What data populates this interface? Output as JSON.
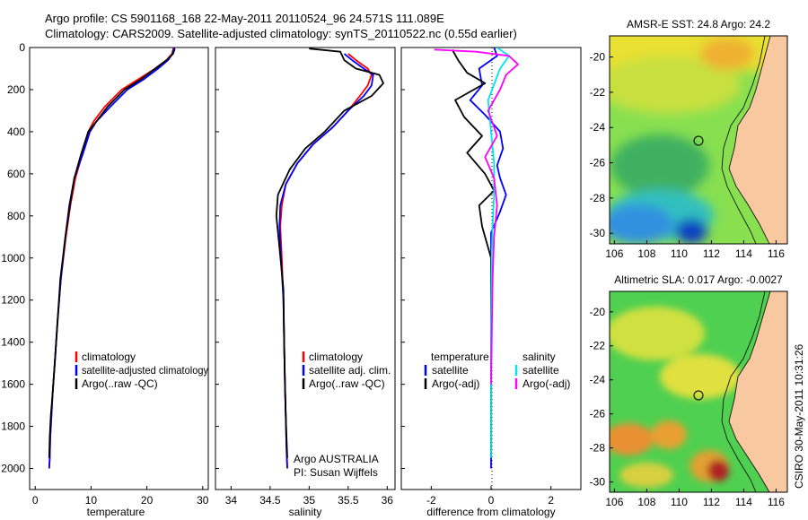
{
  "header": {
    "line1": "Argo profile: CS 5901168_168 22-May-2011 20110524_96 24.571S 111.089E",
    "line2": "Climatology: CARS2009. Satellite-adjusted climatology: synTS_20110522.nc (0.55d earlier)"
  },
  "side_stamp": "CSIRO 30-May-2011 10:31:26",
  "colors": {
    "climatology": "#ff0000",
    "satellite": "#0000ff",
    "argo": "#000000",
    "sal_satellite": "#00e5ee",
    "sal_argo": "#ff00ff",
    "land": "#f8c8a0",
    "coast": "#000000"
  },
  "chart_data": [
    {
      "type": "line",
      "xlabel": "temperature",
      "ylabel": "",
      "xlim": [
        -1,
        31
      ],
      "ylim": [
        2100,
        0
      ],
      "xticks": [
        "0",
        "10",
        "20",
        "30"
      ],
      "yticks": [
        "0",
        "200",
        "400",
        "600",
        "800",
        "1000",
        "1200",
        "1400",
        "1600",
        "1800",
        "2000"
      ],
      "legend": [
        "climatology",
        "satellite-adjusted climatology",
        "Argo(..raw -QC)"
      ],
      "legend_position": "lower-left",
      "series": [
        {
          "name": "climatology",
          "color": "#ff0000",
          "x": [
            24.8,
            24.5,
            23.5,
            21.5,
            18.5,
            15.5,
            12.5,
            10.5,
            9.5,
            8.5,
            7.2,
            6.3,
            5.5,
            4.6,
            4.0,
            3.5,
            3.1,
            2.9,
            2.7,
            2.6,
            2.5
          ],
          "y": [
            0,
            30,
            60,
            100,
            150,
            200,
            280,
            350,
            400,
            500,
            620,
            750,
            900,
            1100,
            1300,
            1500,
            1650,
            1750,
            1850,
            1950,
            2000
          ]
        },
        {
          "name": "satellite-adjusted climatology",
          "color": "#0000ff",
          "x": [
            24.9,
            24.6,
            23.8,
            22.0,
            19.5,
            16.5,
            13.5,
            11.0,
            9.8,
            8.6,
            7.0,
            6.1,
            5.4,
            4.6,
            4.0,
            3.5,
            3.1,
            2.9,
            2.7,
            2.6,
            2.5
          ],
          "y": [
            0,
            30,
            60,
            100,
            150,
            200,
            280,
            350,
            400,
            500,
            620,
            750,
            900,
            1100,
            1300,
            1500,
            1650,
            1750,
            1850,
            1950,
            2000
          ]
        },
        {
          "name": "Argo(..raw -QC)",
          "color": "#000000",
          "x": [
            25.0,
            24.7,
            23.5,
            21.5,
            19.0,
            16.0,
            13.0,
            11.0,
            9.5,
            8.3,
            7.0,
            6.2,
            5.4,
            4.5,
            4.0,
            3.5,
            3.1,
            2.8,
            2.6,
            2.5
          ],
          "y": [
            5,
            30,
            60,
            100,
            150,
            200,
            280,
            350,
            400,
            500,
            620,
            750,
            900,
            1100,
            1300,
            1500,
            1650,
            1750,
            1850,
            1950
          ]
        }
      ]
    },
    {
      "type": "line",
      "xlabel": "salinity",
      "ylabel": "",
      "xlim": [
        33.8,
        36.1
      ],
      "ylim": [
        2100,
        0
      ],
      "xticks": [
        "34",
        "34.5",
        "35",
        "35.5",
        "36"
      ],
      "legend": [
        "climatology",
        "satellite adj. clim.",
        "Argo(..raw -QC)"
      ],
      "legend_position": "lower-left",
      "annotations": [
        "Argo AUSTRALIA",
        "PI: Susan Wijffels"
      ],
      "series": [
        {
          "name": "climatology",
          "color": "#ff0000",
          "x": [
            35.5,
            35.6,
            35.75,
            35.8,
            35.75,
            35.65,
            35.5,
            35.3,
            35.05,
            34.85,
            34.7,
            34.65,
            34.63,
            34.65,
            34.67,
            34.68,
            34.69,
            34.7,
            34.71,
            34.72
          ],
          "y": [
            30,
            60,
            100,
            130,
            180,
            230,
            300,
            380,
            460,
            550,
            650,
            750,
            850,
            1000,
            1200,
            1400,
            1600,
            1750,
            1900,
            2000
          ]
        },
        {
          "name": "satellite adj. clim.",
          "color": "#0000ff",
          "x": [
            35.45,
            35.55,
            35.7,
            35.82,
            35.8,
            35.7,
            35.5,
            35.3,
            35.05,
            34.85,
            34.7,
            34.63,
            34.62,
            34.64,
            34.67,
            34.68,
            34.69,
            34.7,
            34.71,
            34.72
          ],
          "y": [
            30,
            60,
            100,
            130,
            180,
            230,
            300,
            380,
            460,
            550,
            650,
            750,
            850,
            1000,
            1200,
            1400,
            1600,
            1750,
            1900,
            2000
          ]
        },
        {
          "name": "Argo(..raw -QC)",
          "color": "#000000",
          "x": [
            35.0,
            35.4,
            35.45,
            35.6,
            35.9,
            35.95,
            35.8,
            35.45,
            35.2,
            34.95,
            34.75,
            34.6,
            34.58,
            34.62,
            34.67,
            34.68,
            34.69,
            34.7,
            34.71,
            34.72
          ],
          "y": [
            5,
            20,
            60,
            100,
            130,
            170,
            230,
            300,
            400,
            480,
            580,
            700,
            800,
            950,
            1150,
            1400,
            1600,
            1750,
            1850,
            1950
          ]
        }
      ]
    },
    {
      "type": "line",
      "xlabel": "difference from climatology",
      "ylabel": "",
      "xlim": [
        -3,
        3
      ],
      "ylim": [
        2100,
        0
      ],
      "xticks": [
        "-2",
        "0",
        "2"
      ],
      "legend": [
        "temperature",
        "satellite",
        "Argo(-adj)",
        "salinity",
        "satellite",
        "Argo(-adj)"
      ],
      "legend_position": "lower",
      "series": [
        {
          "name": "satellite",
          "color": "#0000ff",
          "x": [
            0.1,
            0.2,
            -0.4,
            -0.3,
            -0.7,
            -0.2,
            0.3,
            0.4,
            0.2,
            0.3,
            0.5,
            0.3,
            0.0,
            0.0,
            0.0,
            0.0,
            0.0
          ],
          "y": [
            0,
            40,
            100,
            180,
            250,
            320,
            400,
            480,
            560,
            620,
            700,
            780,
            880,
            1100,
            1400,
            1700,
            2000
          ]
        },
        {
          "name": "Argo(-adj)",
          "color": "#000000",
          "x": [
            -1.3,
            -1.1,
            -0.8,
            -0.2,
            -1.2,
            -0.9,
            -0.3,
            -0.8,
            -0.2,
            0.1,
            -0.4,
            -0.3,
            0.0,
            0.0,
            0.0,
            0.0
          ],
          "y": [
            10,
            60,
            120,
            170,
            250,
            330,
            420,
            500,
            600,
            680,
            750,
            850,
            1000,
            1300,
            1600,
            1950
          ]
        },
        {
          "name": "satellite",
          "color": "#00e5ee",
          "x": [
            0.2,
            0.6,
            0.3,
            -0.1,
            0.0,
            0.1,
            0.1,
            0.05,
            0.02,
            0.0,
            0.0,
            0.0
          ],
          "y": [
            0,
            40,
            100,
            250,
            400,
            550,
            700,
            850,
            1000,
            1300,
            1600,
            1950
          ]
        },
        {
          "name": "Argo(-adj)",
          "color": "#ff00ff",
          "x": [
            -1.9,
            -0.5,
            0.6,
            0.9,
            0.5,
            0.3,
            -0.1,
            0.2,
            -0.2,
            0.1,
            0.2,
            0.1,
            0.05,
            0.0
          ],
          "y": [
            10,
            20,
            40,
            80,
            130,
            200,
            300,
            420,
            520,
            620,
            750,
            900,
            1100,
            1600
          ]
        }
      ]
    },
    {
      "type": "heatmap",
      "title": "AMSR-E SST: 24.8 Argo: 24.2",
      "xlim": [
        105.7,
        116.7
      ],
      "ylim": [
        -30.6,
        -18.8
      ],
      "xticks": [
        "106",
        "108",
        "110",
        "112",
        "114",
        "116"
      ],
      "yticks": [
        "-20",
        "-22",
        "-24",
        "-26",
        "-28",
        "-30"
      ],
      "marker": {
        "lon": 111.089,
        "lat": -24.571
      }
    },
    {
      "type": "heatmap",
      "title": "Altimetric SLA: 0.017 Argo: -0.0027",
      "xlim": [
        105.7,
        116.7
      ],
      "ylim": [
        -30.6,
        -18.8
      ],
      "xticks": [
        "106",
        "108",
        "110",
        "112",
        "114",
        "116"
      ],
      "yticks": [
        "-20",
        "-22",
        "-24",
        "-26",
        "-28",
        "-30"
      ],
      "marker": {
        "lon": 111.089,
        "lat": -24.571
      }
    }
  ]
}
